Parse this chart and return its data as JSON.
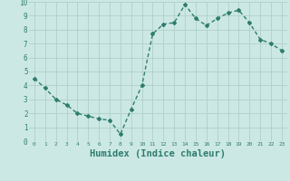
{
  "x": [
    0,
    1,
    2,
    3,
    4,
    5,
    6,
    7,
    8,
    9,
    10,
    11,
    12,
    13,
    14,
    15,
    16,
    17,
    18,
    19,
    20,
    21,
    22,
    23
  ],
  "y": [
    4.5,
    3.8,
    3.0,
    2.6,
    2.0,
    1.8,
    1.6,
    1.5,
    0.5,
    2.3,
    4.0,
    7.7,
    8.4,
    8.5,
    9.8,
    8.8,
    8.3,
    8.8,
    9.2,
    9.4,
    8.5,
    7.3,
    7.0,
    6.5
  ],
  "line_color": "#2e7d6e",
  "marker": "D",
  "marker_size": 2.0,
  "line_width": 1.0,
  "xlabel": "Humidex (Indice chaleur)",
  "xlabel_fontsize": 7.5,
  "xlim": [
    -0.5,
    23.5
  ],
  "ylim": [
    0,
    10
  ],
  "xtick_labels": [
    "0",
    "1",
    "2",
    "3",
    "4",
    "5",
    "6",
    "7",
    "8",
    "9",
    "10",
    "11",
    "12",
    "13",
    "14",
    "15",
    "16",
    "17",
    "18",
    "19",
    "20",
    "21",
    "22",
    "23"
  ],
  "ytick_values": [
    0,
    1,
    2,
    3,
    4,
    5,
    6,
    7,
    8,
    9,
    10
  ],
  "grid_color": "#b0d0c8",
  "bg_color": "#cce8e4"
}
